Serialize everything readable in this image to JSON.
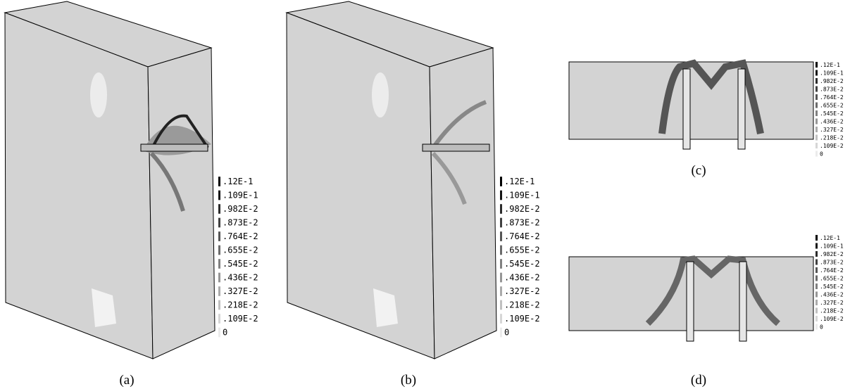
{
  "panels": [
    {
      "caption": "(a)",
      "legend": [
        ".12E-1",
        ".109E-1",
        ".982E-2",
        ".873E-2",
        ".764E-2",
        ".655E-2",
        ".545E-2",
        ".436E-2",
        ".327E-2",
        ".218E-2",
        ".109E-2",
        "0"
      ]
    },
    {
      "caption": "(b)",
      "legend": [
        ".12E-1",
        ".109E-1",
        ".982E-2",
        ".873E-2",
        ".764E-2",
        ".655E-2",
        ".545E-2",
        ".436E-2",
        ".327E-2",
        ".218E-2",
        ".109E-2",
        "0"
      ]
    },
    {
      "caption": "(c)",
      "legend": [
        ".12E-1",
        ".109E-1",
        ".982E-2",
        ".873E-2",
        ".764E-2",
        ".655E-2",
        ".545E-2",
        ".436E-2",
        ".327E-2",
        ".218E-2",
        ".109E-2",
        "0"
      ]
    },
    {
      "caption": "(d)",
      "legend": [
        ".12E-1",
        ".109E-1",
        ".982E-2",
        ".873E-2",
        ".764E-2",
        ".655E-2",
        ".545E-2",
        ".436E-2",
        ".327E-2",
        ".218E-2",
        ".109E-2",
        "0"
      ]
    }
  ]
}
